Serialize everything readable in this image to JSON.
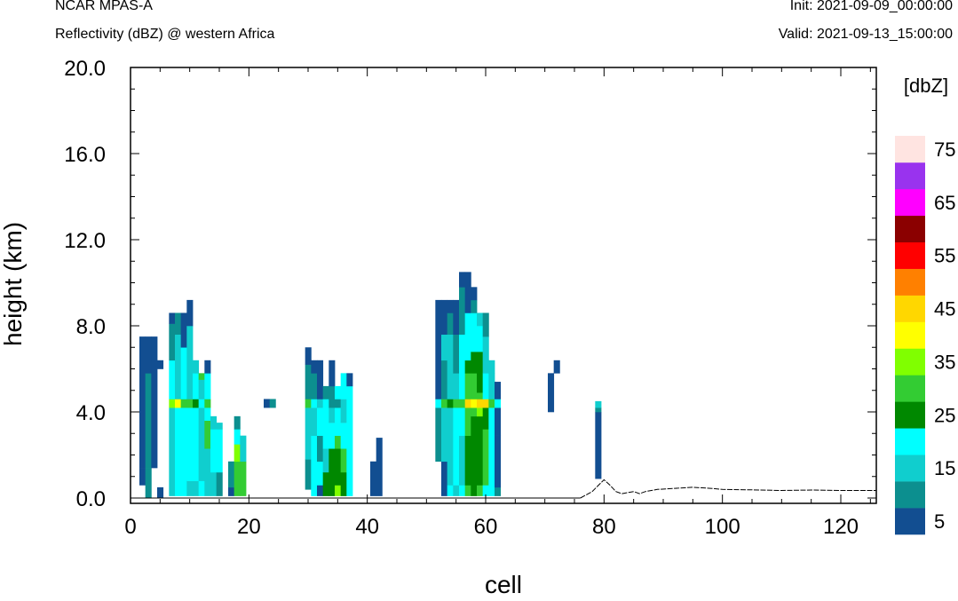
{
  "header": {
    "title": "NCAR MPAS-A",
    "subtitle": "Reflectivity (dBZ) @ western Africa",
    "init": "Init: 2021-09-09_00:00:00",
    "valid": "Valid: 2021-09-13_15:00:00"
  },
  "chart_data": {
    "type": "heatmap",
    "xlabel": "cell",
    "ylabel": "height (km)",
    "xlim": [
      0,
      126
    ],
    "ylim": [
      0,
      20
    ],
    "xticks": [
      "0",
      "20",
      "40",
      "60",
      "80",
      "100",
      "120"
    ],
    "yticks": [
      "0.0",
      "4.0",
      "8.0",
      "12.0",
      "16.0",
      "20.0"
    ],
    "colorbar": {
      "unit": "[dbZ]",
      "levels": [
        5,
        10,
        15,
        20,
        25,
        30,
        35,
        40,
        45,
        50,
        55,
        60,
        65,
        70,
        75
      ],
      "labels": [
        "5",
        "15",
        "25",
        "35",
        "45",
        "55",
        "65",
        "75"
      ],
      "colors": [
        "#124e91",
        "#0c8f8f",
        "#10cece",
        "#00ffff",
        "#008800",
        "#33cc33",
        "#80ff00",
        "#ffff00",
        "#ffd700",
        "#ff8000",
        "#ff0000",
        "#8b0000",
        "#ff00ff",
        "#9933ee",
        "#ffe4e1"
      ]
    },
    "columns": [
      {
        "x": 2,
        "cells": [
          [
            0.6,
            1.4,
            5
          ],
          [
            1.4,
            7.5,
            5
          ]
        ]
      },
      {
        "x": 3,
        "cells": [
          [
            0.0,
            1.4,
            10
          ],
          [
            1.4,
            5.8,
            10
          ],
          [
            5.8,
            7.5,
            5
          ]
        ]
      },
      {
        "x": 4,
        "cells": [
          [
            1.4,
            6.4,
            5
          ],
          [
            6.4,
            7.5,
            5
          ]
        ]
      },
      {
        "x": 5,
        "cells": [
          [
            0.0,
            0.5,
            5
          ],
          [
            6.0,
            6.4,
            5
          ]
        ]
      },
      {
        "x": 7,
        "cells": [
          [
            0.1,
            4.2,
            15
          ],
          [
            4.2,
            4.6,
            35
          ],
          [
            4.6,
            6.4,
            20
          ],
          [
            6.4,
            8.1,
            10
          ],
          [
            8.1,
            8.6,
            5
          ]
        ]
      },
      {
        "x": 8,
        "cells": [
          [
            0.1,
            4.2,
            20
          ],
          [
            4.2,
            4.6,
            40
          ],
          [
            4.6,
            7.6,
            15
          ],
          [
            7.6,
            8.6,
            10
          ]
        ]
      },
      {
        "x": 9,
        "cells": [
          [
            0.1,
            4.2,
            20
          ],
          [
            4.2,
            4.6,
            30
          ],
          [
            4.6,
            7.0,
            20
          ],
          [
            7.0,
            8.6,
            5
          ]
        ]
      },
      {
        "x": 10,
        "cells": [
          [
            0.1,
            0.8,
            15
          ],
          [
            0.8,
            4.2,
            20
          ],
          [
            4.2,
            4.6,
            30
          ],
          [
            4.6,
            8.0,
            15
          ],
          [
            8.0,
            9.2,
            5
          ]
        ]
      },
      {
        "x": 11,
        "cells": [
          [
            0.1,
            0.8,
            15
          ],
          [
            0.8,
            4.2,
            20
          ],
          [
            4.2,
            4.6,
            25
          ],
          [
            4.6,
            5.8,
            20
          ],
          [
            5.8,
            6.4,
            15
          ]
        ]
      },
      {
        "x": 12,
        "cells": [
          [
            0.1,
            0.8,
            20
          ],
          [
            0.8,
            4.2,
            15
          ],
          [
            4.2,
            4.6,
            20
          ],
          [
            4.6,
            5.5,
            15
          ],
          [
            5.5,
            5.8,
            30
          ]
        ]
      },
      {
        "x": 13,
        "cells": [
          [
            0.1,
            2.3,
            15
          ],
          [
            2.3,
            3.6,
            30
          ],
          [
            3.6,
            4.2,
            20
          ],
          [
            4.2,
            4.6,
            30
          ],
          [
            4.6,
            5.8,
            20
          ],
          [
            5.8,
            6.4,
            5
          ]
        ]
      },
      {
        "x": 14,
        "cells": [
          [
            0.1,
            1.2,
            15
          ],
          [
            1.2,
            3.2,
            20
          ],
          [
            3.2,
            3.8,
            15
          ]
        ]
      },
      {
        "x": 15,
        "cells": [
          [
            0.1,
            1.2,
            10
          ],
          [
            1.2,
            3.2,
            20
          ],
          [
            3.2,
            3.5,
            15
          ]
        ]
      },
      {
        "x": 17,
        "cells": [
          [
            0.1,
            0.5,
            5
          ],
          [
            0.5,
            1.7,
            10
          ]
        ]
      },
      {
        "x": 18,
        "cells": [
          [
            0.1,
            1.7,
            30
          ],
          [
            1.7,
            2.5,
            35
          ],
          [
            2.5,
            3.2,
            20
          ],
          [
            3.2,
            3.8,
            10
          ]
        ]
      },
      {
        "x": 19,
        "cells": [
          [
            0.1,
            1.7,
            30
          ],
          [
            1.7,
            2.9,
            15
          ]
        ]
      },
      {
        "x": 23,
        "cells": [
          [
            4.2,
            4.6,
            5
          ]
        ]
      },
      {
        "x": 24,
        "cells": [
          [
            4.2,
            4.6,
            10
          ]
        ]
      },
      {
        "x": 30,
        "cells": [
          [
            0.4,
            1.8,
            10
          ],
          [
            1.8,
            4.2,
            15
          ],
          [
            4.2,
            4.6,
            30
          ],
          [
            4.6,
            6.2,
            10
          ],
          [
            6.2,
            7.0,
            5
          ]
        ]
      },
      {
        "x": 31,
        "cells": [
          [
            0.1,
            0.6,
            20
          ],
          [
            0.6,
            2.9,
            20
          ],
          [
            2.9,
            4.2,
            15
          ],
          [
            4.2,
            4.6,
            20
          ],
          [
            4.6,
            5.8,
            10
          ],
          [
            5.8,
            6.4,
            5
          ]
        ]
      },
      {
        "x": 32,
        "cells": [
          [
            0.1,
            0.6,
            5
          ],
          [
            0.6,
            1.7,
            20
          ],
          [
            1.7,
            2.9,
            10
          ],
          [
            2.9,
            4.2,
            20
          ],
          [
            4.2,
            4.6,
            15
          ],
          [
            4.6,
            5.8,
            5
          ],
          [
            5.8,
            6.4,
            5
          ]
        ]
      },
      {
        "x": 33,
        "cells": [
          [
            0.1,
            1.2,
            25
          ],
          [
            1.2,
            2.3,
            15
          ],
          [
            2.3,
            4.6,
            20
          ],
          [
            4.6,
            5.2,
            10
          ]
        ]
      },
      {
        "x": 34,
        "cells": [
          [
            0.1,
            2.3,
            25
          ],
          [
            2.3,
            3.5,
            20
          ],
          [
            3.5,
            4.2,
            15
          ],
          [
            4.2,
            5.2,
            10
          ],
          [
            5.2,
            6.4,
            5
          ]
        ]
      },
      {
        "x": 35,
        "cells": [
          [
            0.1,
            0.6,
            35
          ],
          [
            0.6,
            2.3,
            25
          ],
          [
            2.3,
            2.9,
            30
          ],
          [
            2.9,
            4.2,
            20
          ],
          [
            4.2,
            4.6,
            10
          ],
          [
            4.6,
            5.2,
            20
          ]
        ]
      },
      {
        "x": 36,
        "cells": [
          [
            0.1,
            1.2,
            25
          ],
          [
            1.2,
            2.3,
            30
          ],
          [
            2.3,
            3.5,
            20
          ],
          [
            3.5,
            4.6,
            15
          ],
          [
            4.6,
            5.8,
            20
          ]
        ]
      },
      {
        "x": 37,
        "cells": [
          [
            0.1,
            5.2,
            20
          ],
          [
            5.2,
            5.8,
            5
          ]
        ]
      },
      {
        "x": 41,
        "cells": [
          [
            0.1,
            1.7,
            5
          ]
        ]
      },
      {
        "x": 42,
        "cells": [
          [
            0.1,
            2.8,
            5
          ]
        ]
      },
      {
        "x": 52,
        "cells": [
          [
            1.7,
            4.2,
            10
          ],
          [
            4.2,
            4.6,
            20
          ],
          [
            4.6,
            9.2,
            5
          ]
        ]
      },
      {
        "x": 53,
        "cells": [
          [
            0.1,
            1.7,
            5
          ],
          [
            1.7,
            4.2,
            15
          ],
          [
            4.2,
            4.6,
            30
          ],
          [
            4.6,
            6.4,
            10
          ],
          [
            6.4,
            7.6,
            15
          ],
          [
            7.6,
            9.2,
            5
          ]
        ]
      },
      {
        "x": 54,
        "cells": [
          [
            0.1,
            0.6,
            20
          ],
          [
            0.6,
            4.2,
            15
          ],
          [
            4.2,
            4.6,
            25
          ],
          [
            4.6,
            7.6,
            15
          ],
          [
            7.6,
            8.6,
            10
          ],
          [
            8.6,
            9.2,
            5
          ]
        ]
      },
      {
        "x": 55,
        "cells": [
          [
            0.1,
            0.6,
            15
          ],
          [
            0.6,
            4.2,
            20
          ],
          [
            4.2,
            4.6,
            30
          ],
          [
            4.6,
            5.8,
            15
          ],
          [
            5.8,
            7.6,
            10
          ],
          [
            7.6,
            9.2,
            5
          ]
        ]
      },
      {
        "x": 56,
        "cells": [
          [
            0.1,
            0.6,
            20
          ],
          [
            0.6,
            2.9,
            15
          ],
          [
            2.9,
            4.2,
            20
          ],
          [
            4.2,
            4.6,
            30
          ],
          [
            4.6,
            5.8,
            20
          ],
          [
            5.8,
            7.0,
            20
          ],
          [
            7.0,
            7.6,
            20
          ],
          [
            7.6,
            9.2,
            10
          ],
          [
            9.2,
            9.8,
            10
          ],
          [
            9.8,
            10.5,
            5
          ]
        ]
      },
      {
        "x": 57,
        "cells": [
          [
            0.1,
            0.6,
            30
          ],
          [
            0.6,
            2.9,
            25
          ],
          [
            2.9,
            4.2,
            30
          ],
          [
            4.2,
            4.6,
            45
          ],
          [
            4.6,
            5.8,
            30
          ],
          [
            5.8,
            6.4,
            25
          ],
          [
            6.4,
            7.6,
            20
          ],
          [
            7.6,
            8.6,
            20
          ],
          [
            8.6,
            10.5,
            5
          ]
        ]
      },
      {
        "x": 58,
        "cells": [
          [
            0.1,
            3.8,
            25
          ],
          [
            3.8,
            4.2,
            30
          ],
          [
            4.2,
            4.6,
            40
          ],
          [
            4.6,
            5.8,
            30
          ],
          [
            5.8,
            6.8,
            25
          ],
          [
            6.8,
            8.6,
            20
          ],
          [
            8.6,
            9.2,
            10
          ],
          [
            9.2,
            9.8,
            5
          ]
        ]
      },
      {
        "x": 59,
        "cells": [
          [
            0.1,
            0.6,
            30
          ],
          [
            0.6,
            3.8,
            25
          ],
          [
            3.8,
            4.2,
            35
          ],
          [
            4.2,
            4.6,
            45
          ],
          [
            4.6,
            4.9,
            30
          ],
          [
            4.9,
            6.8,
            25
          ],
          [
            6.8,
            8.0,
            20
          ],
          [
            8.0,
            8.6,
            15
          ]
        ]
      },
      {
        "x": 60,
        "cells": [
          [
            0.1,
            0.6,
            20
          ],
          [
            0.6,
            3.2,
            30
          ],
          [
            3.2,
            4.2,
            25
          ],
          [
            4.2,
            4.6,
            45
          ],
          [
            4.6,
            5.8,
            20
          ],
          [
            5.8,
            6.4,
            15
          ],
          [
            6.4,
            7.5,
            15
          ],
          [
            7.5,
            8.6,
            10
          ]
        ]
      },
      {
        "x": 61,
        "cells": [
          [
            0.1,
            4.2,
            20
          ],
          [
            4.2,
            4.6,
            30
          ],
          [
            4.6,
            5.8,
            15
          ],
          [
            5.8,
            6.4,
            15
          ]
        ]
      },
      {
        "x": 62,
        "cells": [
          [
            0.1,
            0.5,
            10
          ],
          [
            0.5,
            2.9,
            5
          ],
          [
            2.9,
            4.2,
            5
          ],
          [
            4.2,
            4.6,
            20
          ],
          [
            4.6,
            5.4,
            5
          ]
        ]
      },
      {
        "x": 71,
        "cells": [
          [
            4.0,
            5.8,
            5
          ]
        ]
      },
      {
        "x": 72,
        "cells": [
          [
            5.8,
            6.4,
            5
          ]
        ]
      },
      {
        "x": 79,
        "cells": [
          [
            0.9,
            4.0,
            5
          ],
          [
            4.0,
            4.2,
            10
          ],
          [
            4.2,
            4.5,
            15
          ]
        ]
      }
    ],
    "terrain": [
      [
        76,
        0.0
      ],
      [
        78,
        0.3
      ],
      [
        80,
        0.85
      ],
      [
        81,
        0.6
      ],
      [
        82,
        0.3
      ],
      [
        83,
        0.2
      ],
      [
        84,
        0.25
      ],
      [
        85,
        0.3
      ],
      [
        86,
        0.2
      ],
      [
        87,
        0.3
      ],
      [
        88,
        0.35
      ],
      [
        89,
        0.4
      ],
      [
        92,
        0.45
      ],
      [
        95,
        0.5
      ],
      [
        98,
        0.45
      ],
      [
        100,
        0.4
      ],
      [
        105,
        0.38
      ],
      [
        110,
        0.35
      ],
      [
        115,
        0.37
      ],
      [
        120,
        0.35
      ],
      [
        126,
        0.35
      ]
    ]
  }
}
